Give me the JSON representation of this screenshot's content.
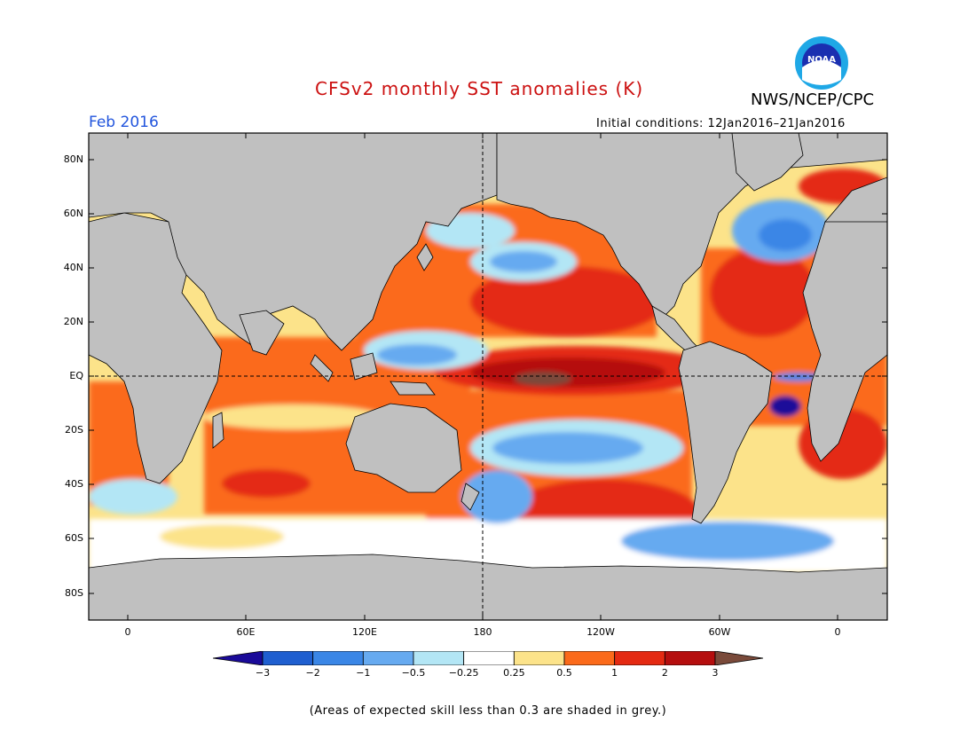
{
  "title": "CFSv2 monthly SST anomalies (K)",
  "agency": "NWS/NCEP/CPC",
  "month": "Feb 2016",
  "initial_conditions": "Initial conditions: 12Jan2016–21Jan2016",
  "logo": {
    "name": "noaa-logo",
    "text": "NOAA"
  },
  "map": {
    "lat_labels": [
      "80N",
      "60N",
      "40N",
      "20N",
      "EQ",
      "20S",
      "40S",
      "60S",
      "80S"
    ],
    "lon_labels": [
      "0",
      "60E",
      "120E",
      "180",
      "120W",
      "60W",
      "0"
    ],
    "land_color": "#c0c0c0"
  },
  "colorbar": {
    "colors": [
      "#1a0a99",
      "#1f5fd0",
      "#3a86e6",
      "#66aaf0",
      "#b3e6f5",
      "#ffffff",
      "#fce38a",
      "#fb6a1a",
      "#e42a12",
      "#b50e0e",
      "#7a4a3a"
    ],
    "labels": [
      "−3",
      "−2",
      "−1",
      "−0.5",
      "−0.25",
      "0.25",
      "0.5",
      "1",
      "2",
      "3"
    ]
  },
  "footnote": "(Areas of expected skill less than 0.3 are shaded in grey.)"
}
